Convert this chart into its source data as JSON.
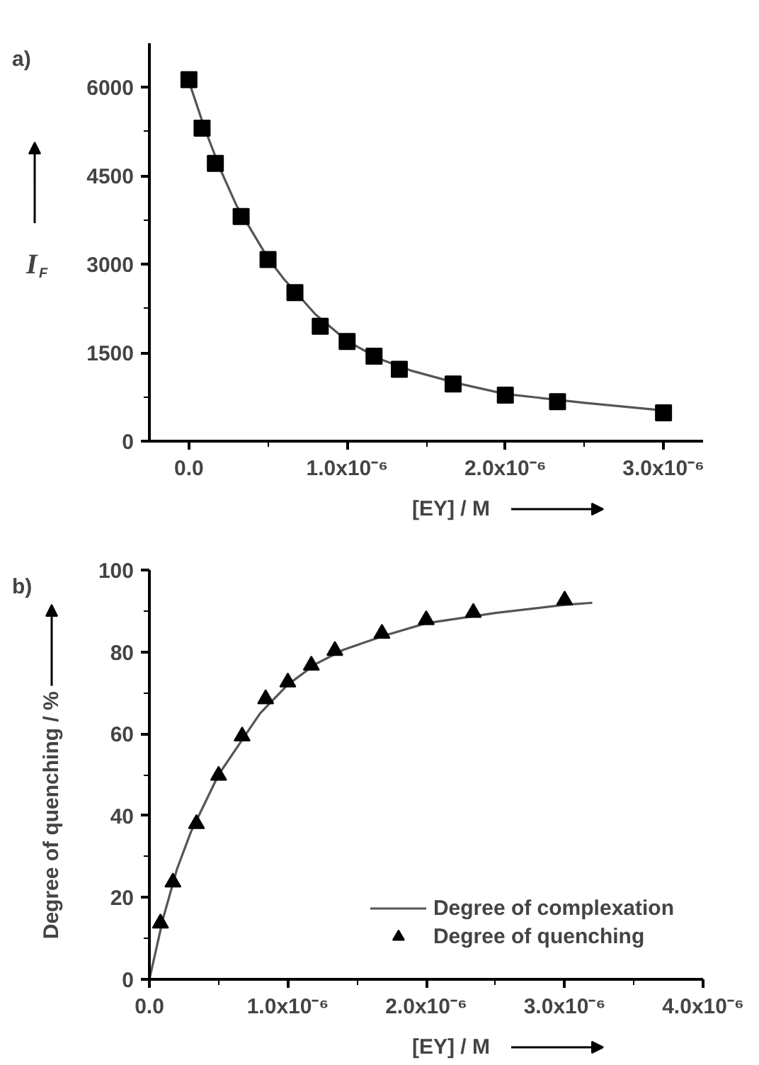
{
  "chart_data": [
    {
      "type": "scatter",
      "title": "a)",
      "xlabel": "[EY] / M",
      "ylabel": "I$_{F}$",
      "xlim": [
        -2.5e-07,
        3.25e-06
      ],
      "ylim": [
        0,
        6750
      ],
      "xticks": [
        {
          "value": 0,
          "label": "0.0"
        },
        {
          "value": 1e-06,
          "label": "1.0x10⁻⁶"
        },
        {
          "value": 2e-06,
          "label": "2.0x10⁻⁶"
        },
        {
          "value": 3e-06,
          "label": "3.0x10⁻⁶"
        }
      ],
      "yticks": [
        0,
        1500,
        3000,
        4500,
        6000
      ],
      "grid": false,
      "legend": false,
      "series": [
        {
          "type": "line",
          "color": "#555555",
          "marker": "none",
          "x": [
            0,
            1e-07,
            2e-07,
            3e-07,
            4e-07,
            5e-07,
            6e-07,
            7e-07,
            8e-07,
            1e-06,
            1.2e-06,
            1.4e-06,
            1.7e-06,
            2e-06,
            2.5e-06,
            3e-06
          ],
          "values": [
            6100,
            5300,
            4600,
            4000,
            3550,
            3100,
            2750,
            2450,
            2150,
            1700,
            1400,
            1200,
            980,
            800,
            650,
            520
          ]
        },
        {
          "type": "scatter",
          "color": "#000000",
          "marker": "square",
          "x": [
            0,
            8.3e-08,
            1.67e-07,
            3.3e-07,
            5e-07,
            6.7e-07,
            8.3e-07,
            1e-06,
            1.17e-06,
            1.33e-06,
            1.67e-06,
            2e-06,
            2.33e-06,
            3e-06
          ],
          "values": [
            6130,
            5310,
            4710,
            3810,
            3080,
            2520,
            1950,
            1690,
            1440,
            1220,
            970,
            780,
            670,
            480
          ]
        }
      ]
    },
    {
      "type": "scatter",
      "title": "b)",
      "xlabel": "[EY] / M",
      "ylabel": "Degree of quenching / %",
      "xlim": [
        0,
        4e-06
      ],
      "ylim": [
        0,
        100
      ],
      "xticks": [
        {
          "value": 0,
          "label": "0.0"
        },
        {
          "value": 1e-06,
          "label": "1.0x10⁻⁶"
        },
        {
          "value": 2e-06,
          "label": "2.0x10⁻⁶"
        },
        {
          "value": 3e-06,
          "label": "3.0x10⁻⁶"
        },
        {
          "value": 4e-06,
          "label": "4.0x10⁻⁶"
        }
      ],
      "yticks": [
        0,
        20,
        40,
        60,
        80,
        100
      ],
      "grid": false,
      "legend": "bottom right",
      "series": [
        {
          "type": "line",
          "name": "Degree of complexation",
          "color": "#555555",
          "marker": "none",
          "x": [
            0,
            1e-07,
            2e-07,
            3e-07,
            4e-07,
            5e-07,
            6e-07,
            7e-07,
            8e-07,
            1e-06,
            1.2e-06,
            1.4e-06,
            1.7e-06,
            2e-06,
            2.5e-06,
            3e-06,
            3.2e-06
          ],
          "values": [
            0,
            15,
            27,
            36,
            43,
            50,
            55,
            60,
            65,
            72,
            77,
            80.5,
            84,
            87,
            89.5,
            91.5,
            92
          ]
        },
        {
          "type": "scatter",
          "name": "Degree of quenching",
          "color": "#000000",
          "marker": "triangle",
          "x": [
            8e-08,
            1.7e-07,
            3.4e-07,
            5e-07,
            6.7e-07,
            8.4e-07,
            1e-06,
            1.17e-06,
            1.34e-06,
            1.68e-06,
            2e-06,
            2.34e-06,
            3e-06
          ],
          "values": [
            13.7,
            23.7,
            38,
            49.8,
            59.4,
            68.5,
            72.6,
            76.7,
            80.3,
            84.5,
            87.8,
            89.6,
            92.6
          ]
        }
      ]
    }
  ]
}
